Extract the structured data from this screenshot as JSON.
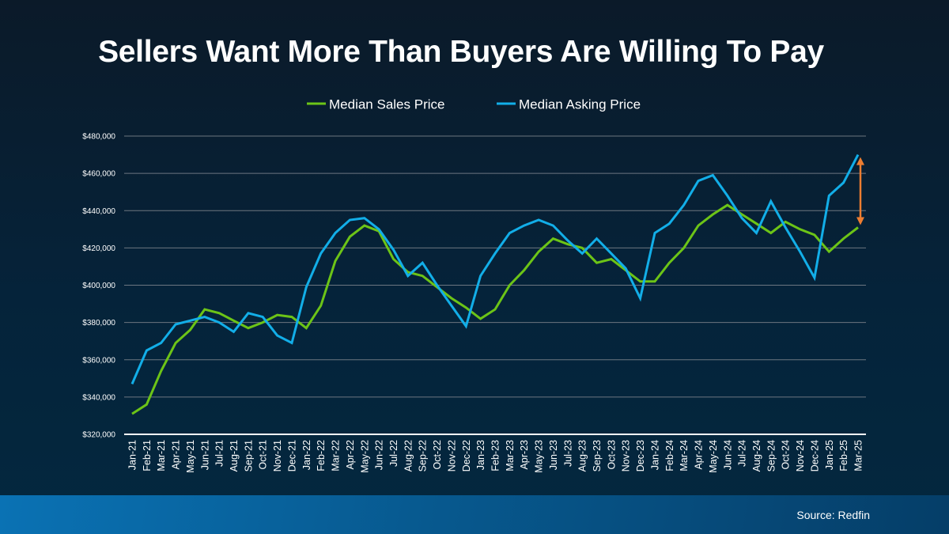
{
  "chart_data": {
    "type": "line",
    "title": "Sellers Want More Than Buyers Are Willing To Pay",
    "xlabel": "",
    "ylabel": "",
    "ylim": [
      320000,
      480000
    ],
    "yticks": [
      "$320,000",
      "$340,000",
      "$360,000",
      "$380,000",
      "$400,000",
      "$420,000",
      "$440,000",
      "$460,000",
      "$480,000"
    ],
    "grid": true,
    "legend_position": "top",
    "categories": [
      "Jan-21",
      "Feb-21",
      "Mar-21",
      "Apr-21",
      "May-21",
      "Jun-21",
      "Jul-21",
      "Aug-21",
      "Sep-21",
      "Oct-21",
      "Nov-21",
      "Dec-21",
      "Jan-22",
      "Feb-22",
      "Mar-22",
      "Apr-22",
      "May-22",
      "Jun-22",
      "Jul-22",
      "Aug-22",
      "Sep-22",
      "Oct-22",
      "Nov-22",
      "Dec-22",
      "Jan-23",
      "Feb-23",
      "Mar-23",
      "Apr-23",
      "May-23",
      "Jun-23",
      "Jul-23",
      "Aug-23",
      "Sep-23",
      "Oct-23",
      "Nov-23",
      "Dec-23",
      "Jan-24",
      "Feb-24",
      "Mar-24",
      "Apr-24",
      "May-24",
      "Jun-24",
      "Jul-24",
      "Aug-24",
      "Sep-24",
      "Oct-24",
      "Nov-24",
      "Dec-24",
      "Jan-25",
      "Feb-25",
      "Mar-25"
    ],
    "series": [
      {
        "name": "Median Sales Price",
        "color": "#6cc417",
        "values": [
          331000,
          336000,
          354000,
          369000,
          376000,
          387000,
          385000,
          381000,
          377000,
          380000,
          384000,
          383000,
          377000,
          389000,
          413000,
          426000,
          432000,
          429000,
          414000,
          407000,
          405000,
          399000,
          393000,
          388000,
          382000,
          387000,
          400000,
          408000,
          418000,
          425000,
          422000,
          420000,
          412000,
          414000,
          408000,
          402000,
          402000,
          412000,
          420000,
          432000,
          438000,
          443000,
          438000,
          433000,
          428000,
          434000,
          430000,
          427000,
          418000,
          425000,
          431000
        ]
      },
      {
        "name": "Median Asking Price",
        "color": "#12aee8",
        "values": [
          347000,
          365000,
          369000,
          379000,
          381000,
          383000,
          380000,
          375000,
          385000,
          383000,
          373000,
          369000,
          399000,
          417000,
          428000,
          435000,
          436000,
          430000,
          419000,
          405000,
          412000,
          400000,
          389000,
          378000,
          405000,
          417000,
          428000,
          432000,
          435000,
          432000,
          424000,
          417000,
          425000,
          417000,
          409000,
          393000,
          428000,
          433000,
          443000,
          456000,
          459000,
          448000,
          436000,
          428000,
          445000,
          431000,
          418000,
          404000,
          448000,
          455000,
          470000
        ]
      }
    ],
    "annotation": {
      "type": "double-arrow",
      "between": "Mar-25 values",
      "color": "#ed7d31"
    }
  },
  "footer": {
    "source": "Source: Redfin"
  }
}
